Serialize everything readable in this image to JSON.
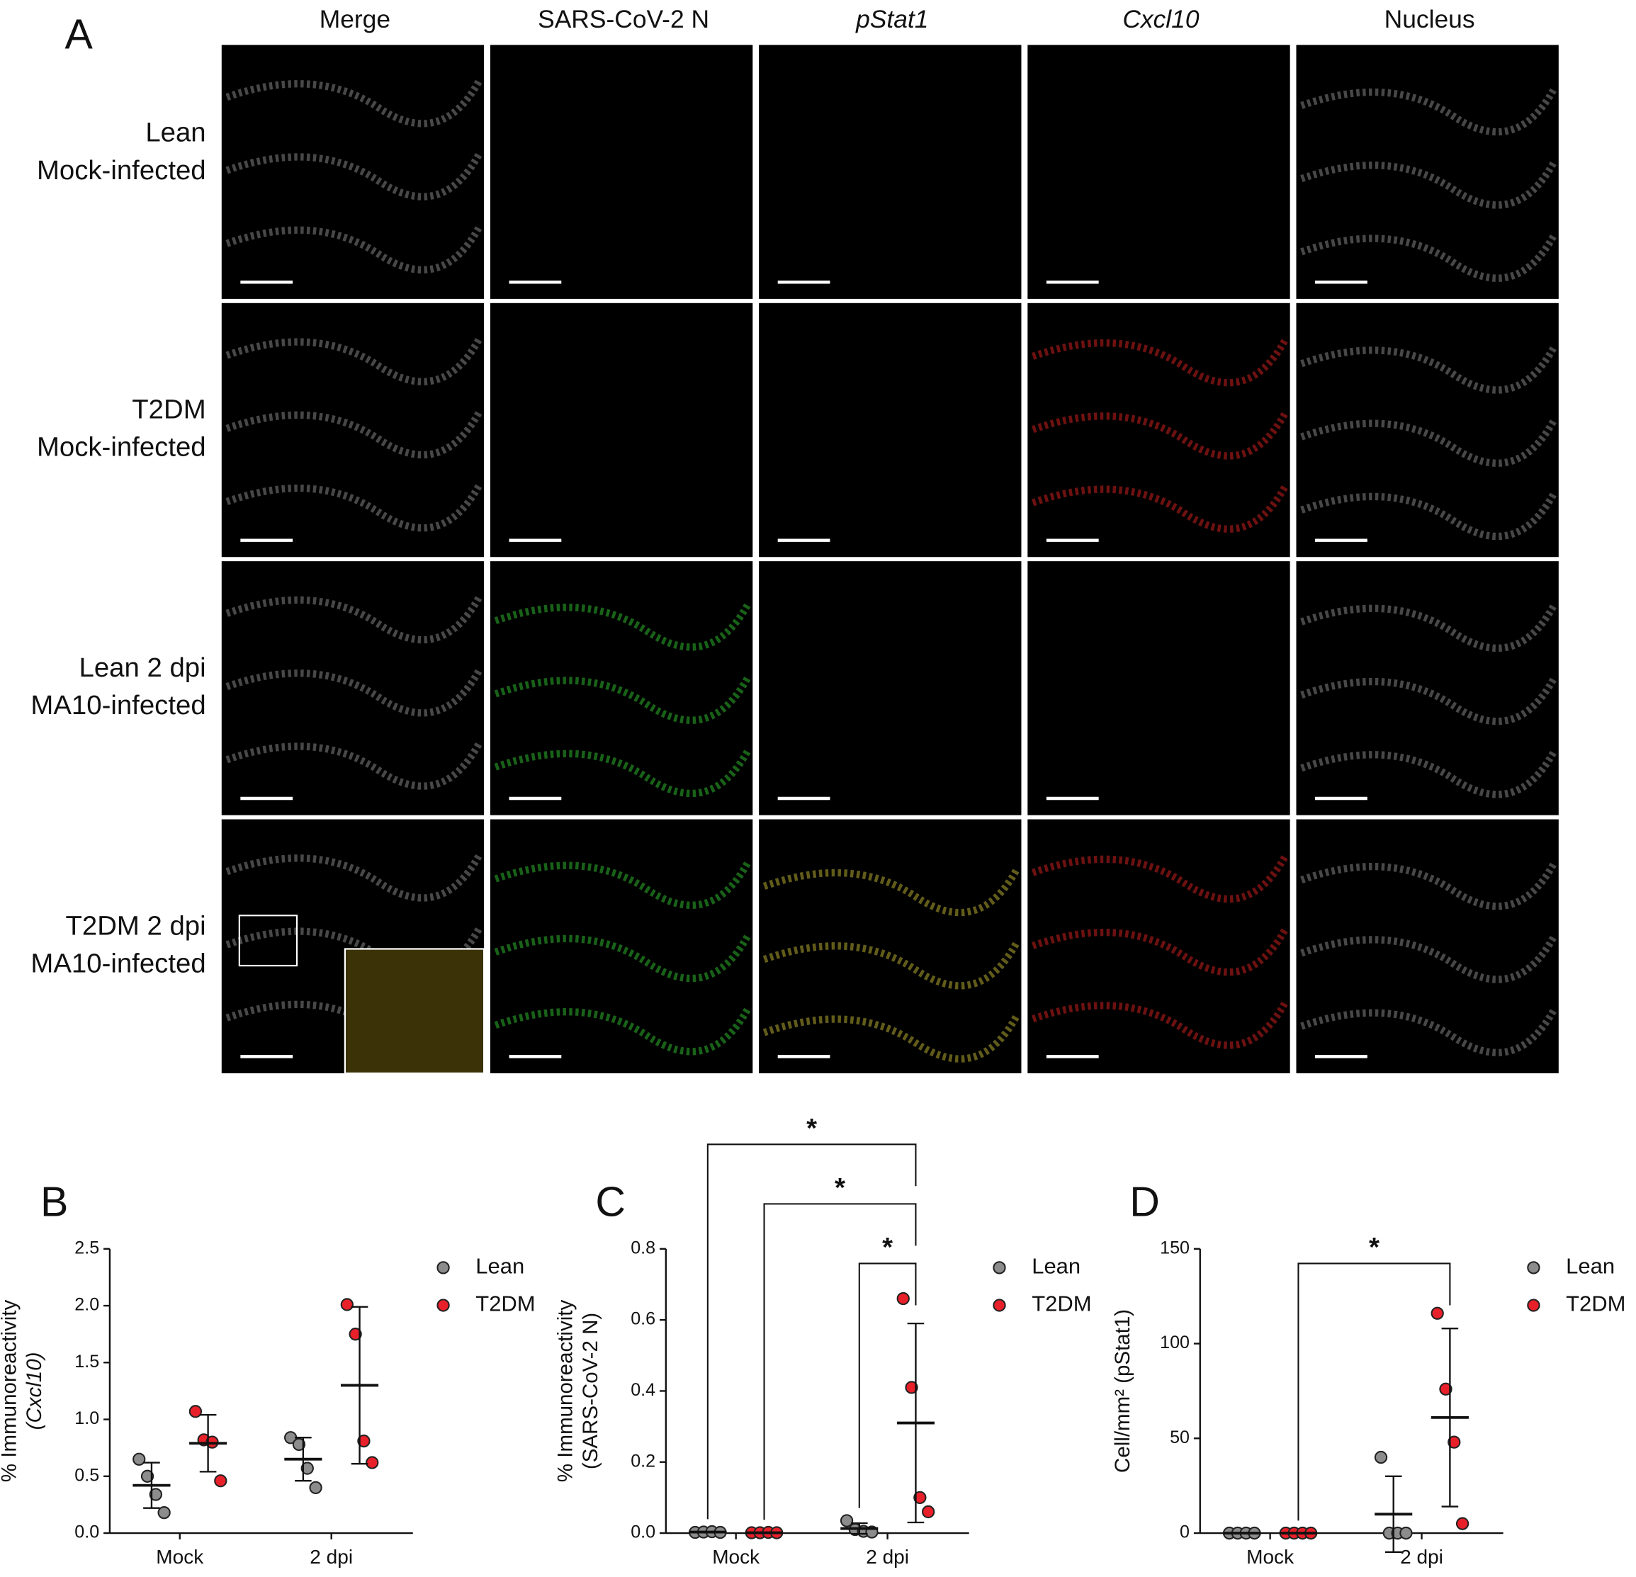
{
  "panel_a": {
    "label": "A",
    "columns": [
      "Merge",
      "SARS-CoV-2 N",
      "pStat1",
      "Cxcl10",
      "Nucleus"
    ],
    "rows": [
      [
        "Lean",
        "Mock-infected"
      ],
      [
        "T2DM",
        "Mock-infected"
      ],
      [
        "Lean 2 dpi",
        "MA10-infected"
      ],
      [
        "T2DM 2 dpi",
        "MA10-infected"
      ]
    ]
  },
  "chart_data": [
    {
      "type": "dot",
      "label": "B",
      "y_label": [
        "% Immunoreactivity",
        "(Cxcl10)"
      ],
      "categories": [
        "Mock",
        "2 dpi"
      ],
      "ylim": [
        0,
        2.5
      ],
      "yticks": [
        {
          "value": 0,
          "label": "0.0"
        },
        0.5,
        {
          "value": 1,
          "label": "1.0"
        },
        1.5,
        {
          "value": 2,
          "label": "2.0"
        },
        2.5
      ],
      "series": [
        {
          "name": "Lean",
          "color": "#8c8c8c",
          "values": [
            [
              0.65,
              0.5,
              0.34,
              0.18
            ],
            [
              0.84,
              0.78,
              0.57,
              0.4
            ]
          ],
          "mean": [
            0.42,
            0.65
          ],
          "sd": [
            0.2,
            0.19
          ]
        },
        {
          "name": "T2DM",
          "color": "#e8202a",
          "values": [
            [
              1.07,
              0.82,
              0.8,
              0.46
            ],
            [
              2.01,
              1.75,
              0.81,
              0.62
            ]
          ],
          "mean": [
            0.79,
            1.3
          ],
          "sd": [
            0.25,
            0.69
          ]
        }
      ],
      "brackets": []
    },
    {
      "type": "dot",
      "label": "C",
      "y_label": [
        "% Immunoreactivity",
        "(SARS-CoV-2 N)"
      ],
      "categories": [
        "Mock",
        "2 dpi"
      ],
      "ylim": [
        0,
        0.8
      ],
      "yticks": [
        {
          "value": 0,
          "label": "0.0"
        },
        0.2,
        0.4,
        0.6,
        0.8
      ],
      "series": [
        {
          "name": "Lean",
          "color": "#8c8c8c",
          "values": [
            [
              0.002,
              0.003,
              0.004,
              0.002
            ],
            [
              0.035,
              0.01,
              0.005,
              0.003
            ]
          ],
          "mean": [
            0.003,
            0.013
          ],
          "sd": [
            0.001,
            0.015
          ]
        },
        {
          "name": "T2DM",
          "color": "#e8202a",
          "values": [
            [
              0.001,
              0.001,
              0.002,
              0.001
            ],
            [
              0.66,
              0.41,
              0.1,
              0.06
            ]
          ],
          "mean": [
            0.001,
            0.31
          ],
          "sd": [
            0.0005,
            0.28
          ]
        }
      ],
      "brackets": [
        {
          "label": "*",
          "between": [
            [
              "Mock",
              "Lean"
            ],
            [
              "2 dpi",
              "T2DM"
            ]
          ]
        },
        {
          "label": "*",
          "between": [
            [
              "Mock",
              "T2DM"
            ],
            [
              "2 dpi",
              "T2DM"
            ]
          ]
        },
        {
          "label": "*",
          "between": [
            [
              "2 dpi",
              "Lean"
            ],
            [
              "2 dpi",
              "T2DM"
            ]
          ]
        }
      ]
    },
    {
      "type": "dot",
      "label": "D",
      "y_label": [
        "Cell/mm² (pStat1)"
      ],
      "categories": [
        "Mock",
        "2 dpi"
      ],
      "ylim": [
        0,
        150
      ],
      "yticks": [
        0,
        50,
        100,
        150
      ],
      "series": [
        {
          "name": "Lean",
          "color": "#8c8c8c",
          "values": [
            [
              0,
              0,
              0,
              0
            ],
            [
              40,
              0,
              0,
              0
            ]
          ],
          "mean": [
            0,
            10
          ],
          "sd": [
            0,
            20
          ]
        },
        {
          "name": "T2DM",
          "color": "#e8202a",
          "values": [
            [
              0,
              0,
              0,
              0
            ],
            [
              116,
              76,
              48,
              5
            ]
          ],
          "mean": [
            0,
            61
          ],
          "sd": [
            0,
            47
          ]
        }
      ],
      "brackets": [
        {
          "label": "*",
          "between": [
            [
              "Mock",
              "T2DM"
            ],
            [
              "2 dpi",
              "T2DM"
            ]
          ]
        }
      ]
    }
  ]
}
